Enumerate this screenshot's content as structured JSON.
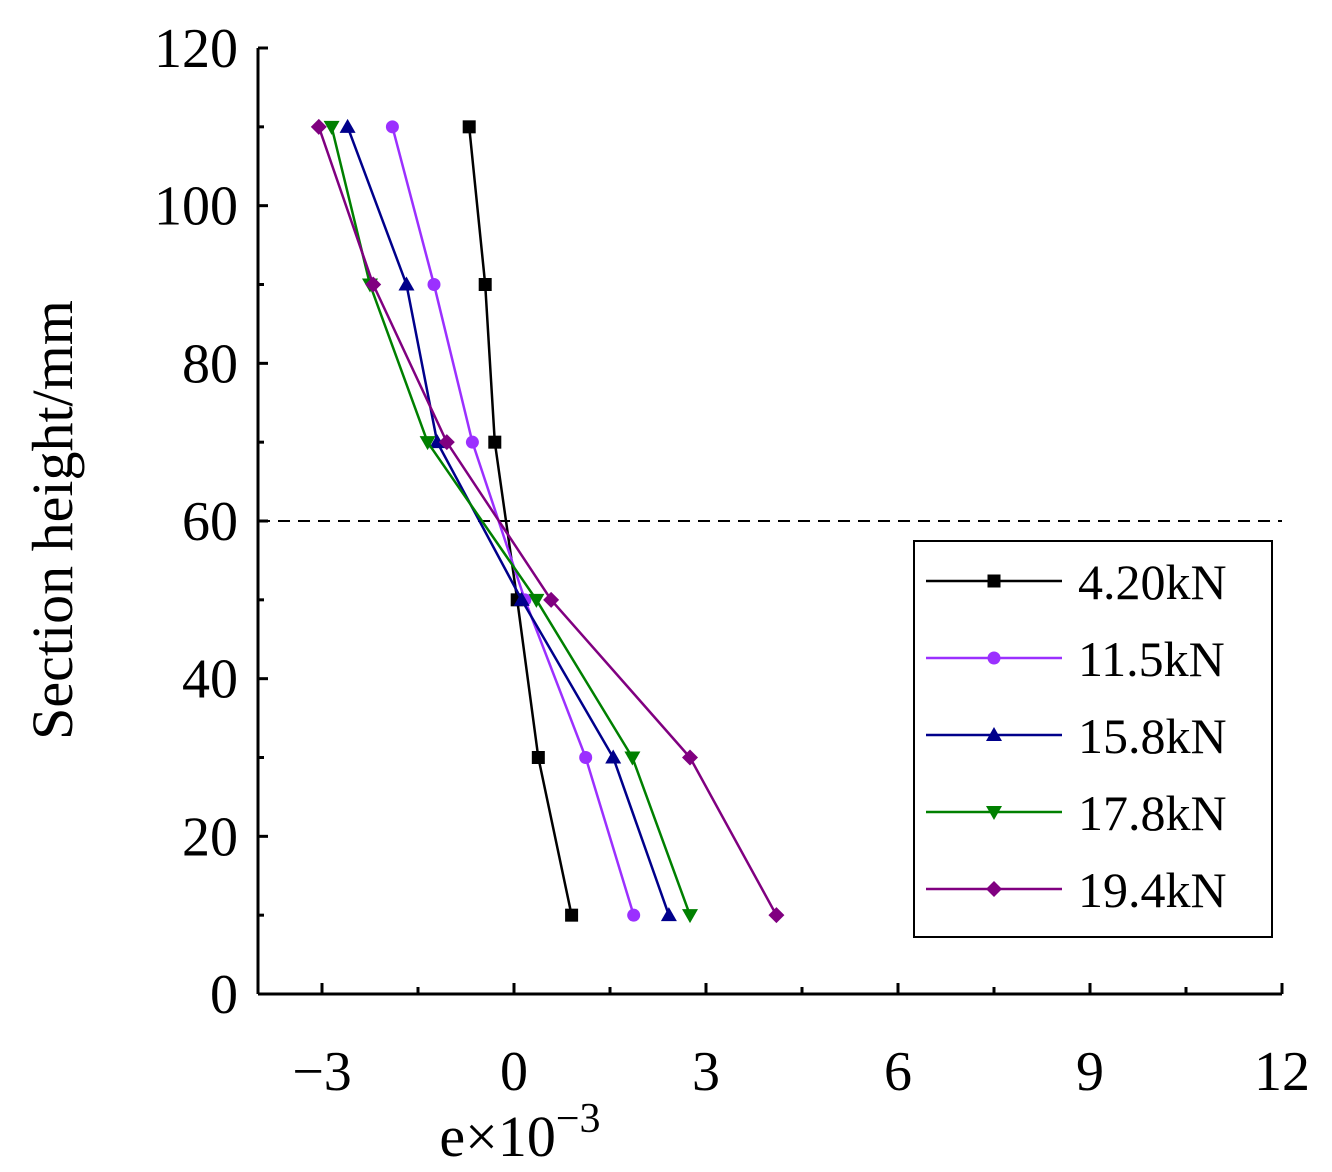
{
  "chart_data": {
    "type": "line",
    "title": "",
    "xlabel": "e×10",
    "xlabel_exponent": "−3",
    "ylabel": "Section height/mm",
    "xlim": [
      -4,
      12
    ],
    "ylim": [
      0,
      120
    ],
    "x_ticks": [
      -3,
      0,
      3,
      6,
      9,
      12
    ],
    "x_tick_labels": [
      "−3",
      "0",
      "3",
      "6",
      "9",
      "12"
    ],
    "y_ticks": [
      0,
      20,
      40,
      60,
      80,
      100,
      120
    ],
    "y_tick_labels": [
      "0",
      "20",
      "40",
      "60",
      "80",
      "100",
      "120"
    ],
    "reference_line": {
      "y": 60,
      "style": "dashed"
    },
    "legend_position": "right",
    "series": [
      {
        "name": "4.20kN",
        "color": "#000000",
        "marker": "square",
        "points": [
          [
            -0.7,
            110
          ],
          [
            -0.45,
            90
          ],
          [
            -0.3,
            70
          ],
          [
            0.05,
            50
          ],
          [
            0.38,
            30
          ],
          [
            0.9,
            10
          ]
        ]
      },
      {
        "name": "11.5kN",
        "color": "#9B30FF",
        "marker": "circle",
        "points": [
          [
            -1.9,
            110
          ],
          [
            -1.25,
            90
          ],
          [
            -0.65,
            70
          ],
          [
            0.17,
            50
          ],
          [
            1.12,
            30
          ],
          [
            1.87,
            10
          ]
        ]
      },
      {
        "name": "15.8kN",
        "color": "#00008B",
        "marker": "triangle-up",
        "points": [
          [
            -2.6,
            110
          ],
          [
            -1.68,
            90
          ],
          [
            -1.2,
            70
          ],
          [
            0.12,
            50
          ],
          [
            1.55,
            30
          ],
          [
            2.42,
            10
          ]
        ]
      },
      {
        "name": "17.8kN",
        "color": "#008000",
        "marker": "triangle-down",
        "points": [
          [
            -2.85,
            110
          ],
          [
            -2.25,
            90
          ],
          [
            -1.35,
            70
          ],
          [
            0.35,
            50
          ],
          [
            1.85,
            30
          ],
          [
            2.75,
            10
          ]
        ]
      },
      {
        "name": "19.4kN",
        "color": "#800080",
        "marker": "diamond",
        "points": [
          [
            -3.05,
            110
          ],
          [
            -2.2,
            90
          ],
          [
            -1.05,
            70
          ],
          [
            0.58,
            50
          ],
          [
            2.75,
            30
          ],
          [
            4.1,
            10
          ]
        ]
      }
    ]
  }
}
